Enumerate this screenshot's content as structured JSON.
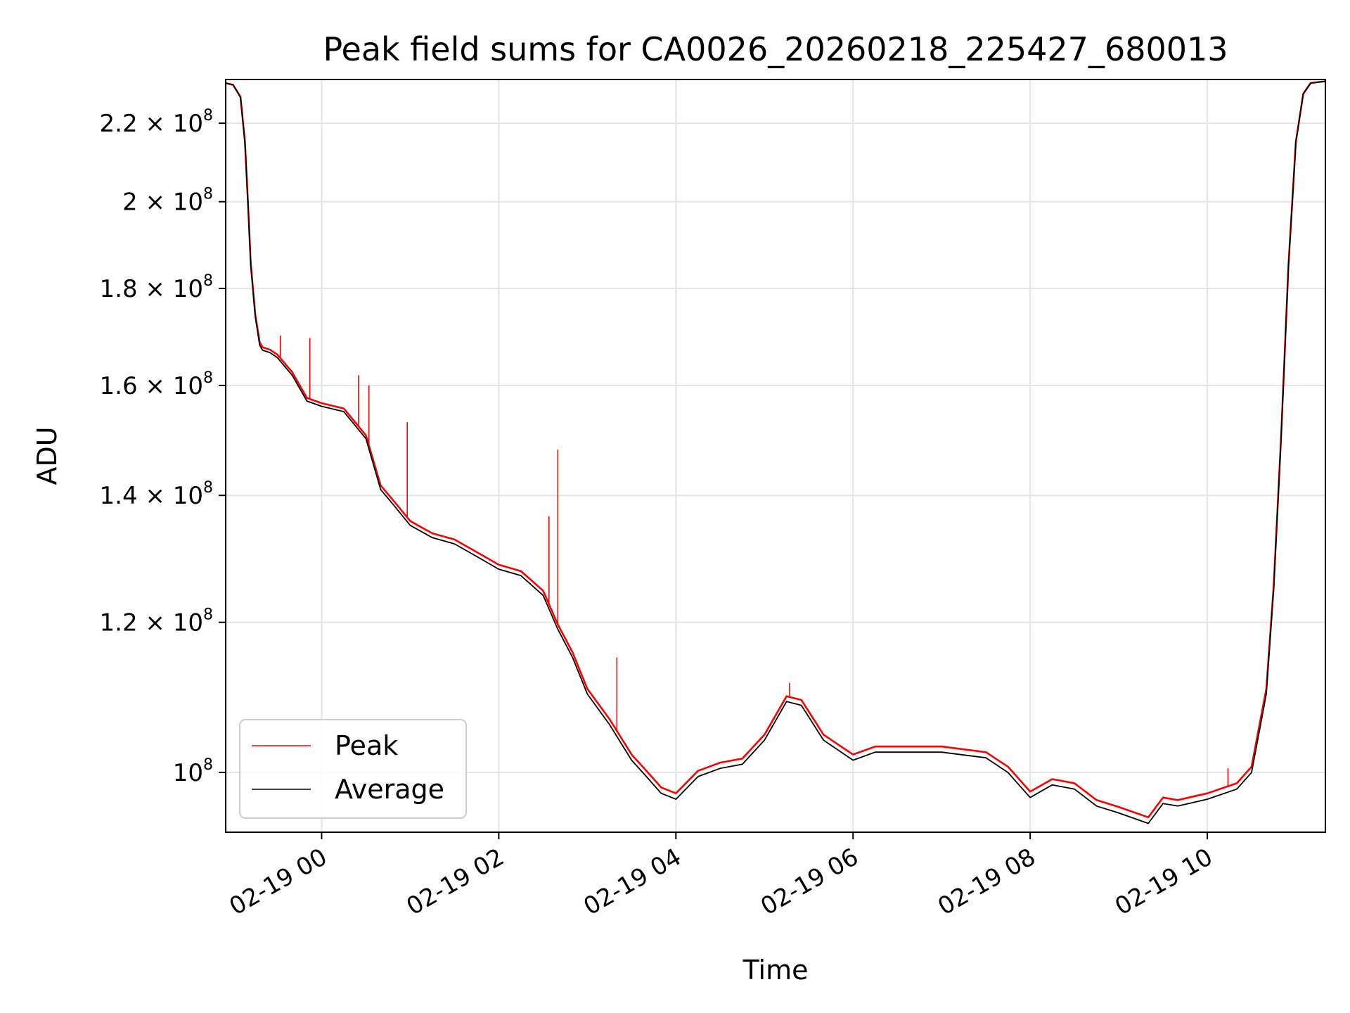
{
  "chart_data": {
    "type": "line",
    "title": "Peak field sums for CA0026_20260218_225427_680013",
    "xlabel": "Time",
    "ylabel": "ADU",
    "y_scale": "log",
    "grid": true,
    "legend_position": "lower-left",
    "x_unit": "hours",
    "xlim": [
      "02-18 22:55",
      "02-19 11:20"
    ],
    "ylim": [
      93000000,
      232000000
    ],
    "x_ticks": [
      {
        "value": "02-19 00:00",
        "label": "02-19 00"
      },
      {
        "value": "02-19 02:00",
        "label": "02-19 02"
      },
      {
        "value": "02-19 04:00",
        "label": "02-19 04"
      },
      {
        "value": "02-19 06:00",
        "label": "02-19 06"
      },
      {
        "value": "02-19 08:00",
        "label": "02-19 08"
      },
      {
        "value": "02-19 10:00",
        "label": "02-19 10"
      }
    ],
    "y_ticks": [
      {
        "value": 100000000,
        "mant": "",
        "exp": "8"
      },
      {
        "value": 120000000,
        "mant": "1.2 × 10",
        "exp": "8"
      },
      {
        "value": 140000000,
        "mant": "1.4 × 10",
        "exp": "8"
      },
      {
        "value": 160000000,
        "mant": "1.6 × 10",
        "exp": "8"
      },
      {
        "value": 180000000,
        "mant": "1.8 × 10",
        "exp": "8"
      },
      {
        "value": 200000000,
        "mant": "2 × 10",
        "exp": "8"
      },
      {
        "value": 220000000,
        "mant": "2.2 × 10",
        "exp": "8"
      }
    ],
    "y_tick_plain_prefix": "10",
    "series": [
      {
        "name": "Average",
        "color": "#000000",
        "x": [
          "02-18 22:55",
          "02-18 23:00",
          "02-18 23:05",
          "02-18 23:08",
          "02-18 23:10",
          "02-18 23:12",
          "02-18 23:15",
          "02-18 23:18",
          "02-18 23:20",
          "02-18 23:25",
          "02-18 23:30",
          "02-18 23:40",
          "02-18 23:50",
          "02-19 00:00",
          "02-19 00:15",
          "02-19 00:30",
          "02-19 00:40",
          "02-19 00:50",
          "02-19 01:00",
          "02-19 01:15",
          "02-19 01:30",
          "02-19 01:45",
          "02-19 02:00",
          "02-19 02:15",
          "02-19 02:30",
          "02-19 02:40",
          "02-19 02:50",
          "02-19 03:00",
          "02-19 03:15",
          "02-19 03:30",
          "02-19 03:40",
          "02-19 03:50",
          "02-19 04:00",
          "02-19 04:15",
          "02-19 04:30",
          "02-19 04:45",
          "02-19 05:00",
          "02-19 05:15",
          "02-19 05:25",
          "02-19 05:40",
          "02-19 06:00",
          "02-19 06:15",
          "02-19 06:30",
          "02-19 06:45",
          "02-19 07:00",
          "02-19 07:30",
          "02-19 07:45",
          "02-19 08:00",
          "02-19 08:15",
          "02-19 08:30",
          "02-19 08:45",
          "02-19 09:00",
          "02-19 09:20",
          "02-19 09:30",
          "02-19 09:40",
          "02-19 10:00",
          "02-19 10:20",
          "02-19 10:30",
          "02-19 10:40",
          "02-19 10:45",
          "02-19 10:50",
          "02-19 10:55",
          "02-19 11:00",
          "02-19 11:05",
          "02-19 11:10",
          "02-19 11:20"
        ],
        "values": [
          231000000,
          230500000,
          227000000,
          215000000,
          200000000,
          185000000,
          174000000,
          168000000,
          167000000,
          166500000,
          165500000,
          162000000,
          157000000,
          156000000,
          155000000,
          150000000,
          141000000,
          138000000,
          135000000,
          133000000,
          132000000,
          130000000,
          128000000,
          127000000,
          124000000,
          119000000,
          115000000,
          110000000,
          106000000,
          101500000,
          99500000,
          97500000,
          96800000,
          99500000,
          100500000,
          101000000,
          104000000,
          109000000,
          108500000,
          104000000,
          101500000,
          102500000,
          102500000,
          102500000,
          102500000,
          101800000,
          100000000,
          97000000,
          98500000,
          98000000,
          96000000,
          95200000,
          94000000,
          96300000,
          96000000,
          96800000,
          98000000,
          100000000,
          110000000,
          125000000,
          150000000,
          185000000,
          215000000,
          228000000,
          231000000,
          231500000
        ]
      },
      {
        "name": "Peak",
        "color": "#ff0000",
        "x": [
          "02-18 22:55",
          "02-18 23:00",
          "02-18 23:05",
          "02-18 23:08",
          "02-18 23:10",
          "02-18 23:12",
          "02-18 23:15",
          "02-18 23:18",
          "02-18 23:20",
          "02-18 23:25",
          "02-18 23:30",
          "02-18 23:40",
          "02-18 23:50",
          "02-19 00:00",
          "02-19 00:15",
          "02-19 00:30",
          "02-19 00:40",
          "02-19 00:50",
          "02-19 01:00",
          "02-19 01:15",
          "02-19 01:30",
          "02-19 01:45",
          "02-19 02:00",
          "02-19 02:15",
          "02-19 02:30",
          "02-19 02:40",
          "02-19 02:50",
          "02-19 03:00",
          "02-19 03:15",
          "02-19 03:30",
          "02-19 03:40",
          "02-19 03:50",
          "02-19 04:00",
          "02-19 04:15",
          "02-19 04:30",
          "02-19 04:45",
          "02-19 05:00",
          "02-19 05:15",
          "02-19 05:25",
          "02-19 05:40",
          "02-19 06:00",
          "02-19 06:15",
          "02-19 06:30",
          "02-19 06:45",
          "02-19 07:00",
          "02-19 07:30",
          "02-19 07:45",
          "02-19 08:00",
          "02-19 08:15",
          "02-19 08:30",
          "02-19 08:45",
          "02-19 09:00",
          "02-19 09:20",
          "02-19 09:30",
          "02-19 09:40",
          "02-19 10:00",
          "02-19 10:20",
          "02-19 10:30",
          "02-19 10:40",
          "02-19 10:45",
          "02-19 10:50",
          "02-19 10:55",
          "02-19 11:00",
          "02-19 11:05",
          "02-19 11:10",
          "02-19 11:20"
        ],
        "values": [
          231000000,
          230500000,
          227200000,
          215300000,
          200400000,
          185400000,
          174500000,
          168600000,
          167600000,
          167100000,
          166100000,
          162600000,
          157600000,
          156600000,
          155600000,
          150600000,
          141700000,
          138700000,
          135700000,
          133700000,
          132700000,
          130700000,
          128700000,
          127700000,
          124700000,
          119700000,
          115700000,
          110700000,
          106700000,
          102200000,
          100200000,
          98200000,
          97500000,
          100200000,
          101200000,
          101700000,
          104700000,
          109700000,
          109200000,
          104700000,
          102200000,
          103200000,
          103200000,
          103200000,
          103200000,
          102500000,
          100700000,
          97700000,
          99200000,
          98700000,
          96700000,
          95900000,
          94700000,
          97000000,
          96700000,
          97500000,
          98700000,
          100700000,
          110700000,
          125500000,
          150300000,
          185200000,
          215100000,
          228000000,
          231000000,
          231500000
        ],
        "spikes": [
          {
            "x": "02-18 23:32",
            "value": 170000000
          },
          {
            "x": "02-18 23:52",
            "value": 169500000
          },
          {
            "x": "02-19 00:25",
            "value": 162000000
          },
          {
            "x": "02-19 00:32",
            "value": 160000000
          },
          {
            "x": "02-19 00:58",
            "value": 153000000
          },
          {
            "x": "02-19 02:34",
            "value": 136500000
          },
          {
            "x": "02-19 02:40",
            "value": 148000000
          },
          {
            "x": "02-19 03:20",
            "value": 115000000
          },
          {
            "x": "02-19 05:17",
            "value": 111500000
          },
          {
            "x": "02-19 10:14",
            "value": 100500000
          }
        ]
      }
    ],
    "legend": [
      {
        "name": "Peak",
        "color": "#ff0000"
      },
      {
        "name": "Average",
        "color": "#000000"
      }
    ]
  }
}
